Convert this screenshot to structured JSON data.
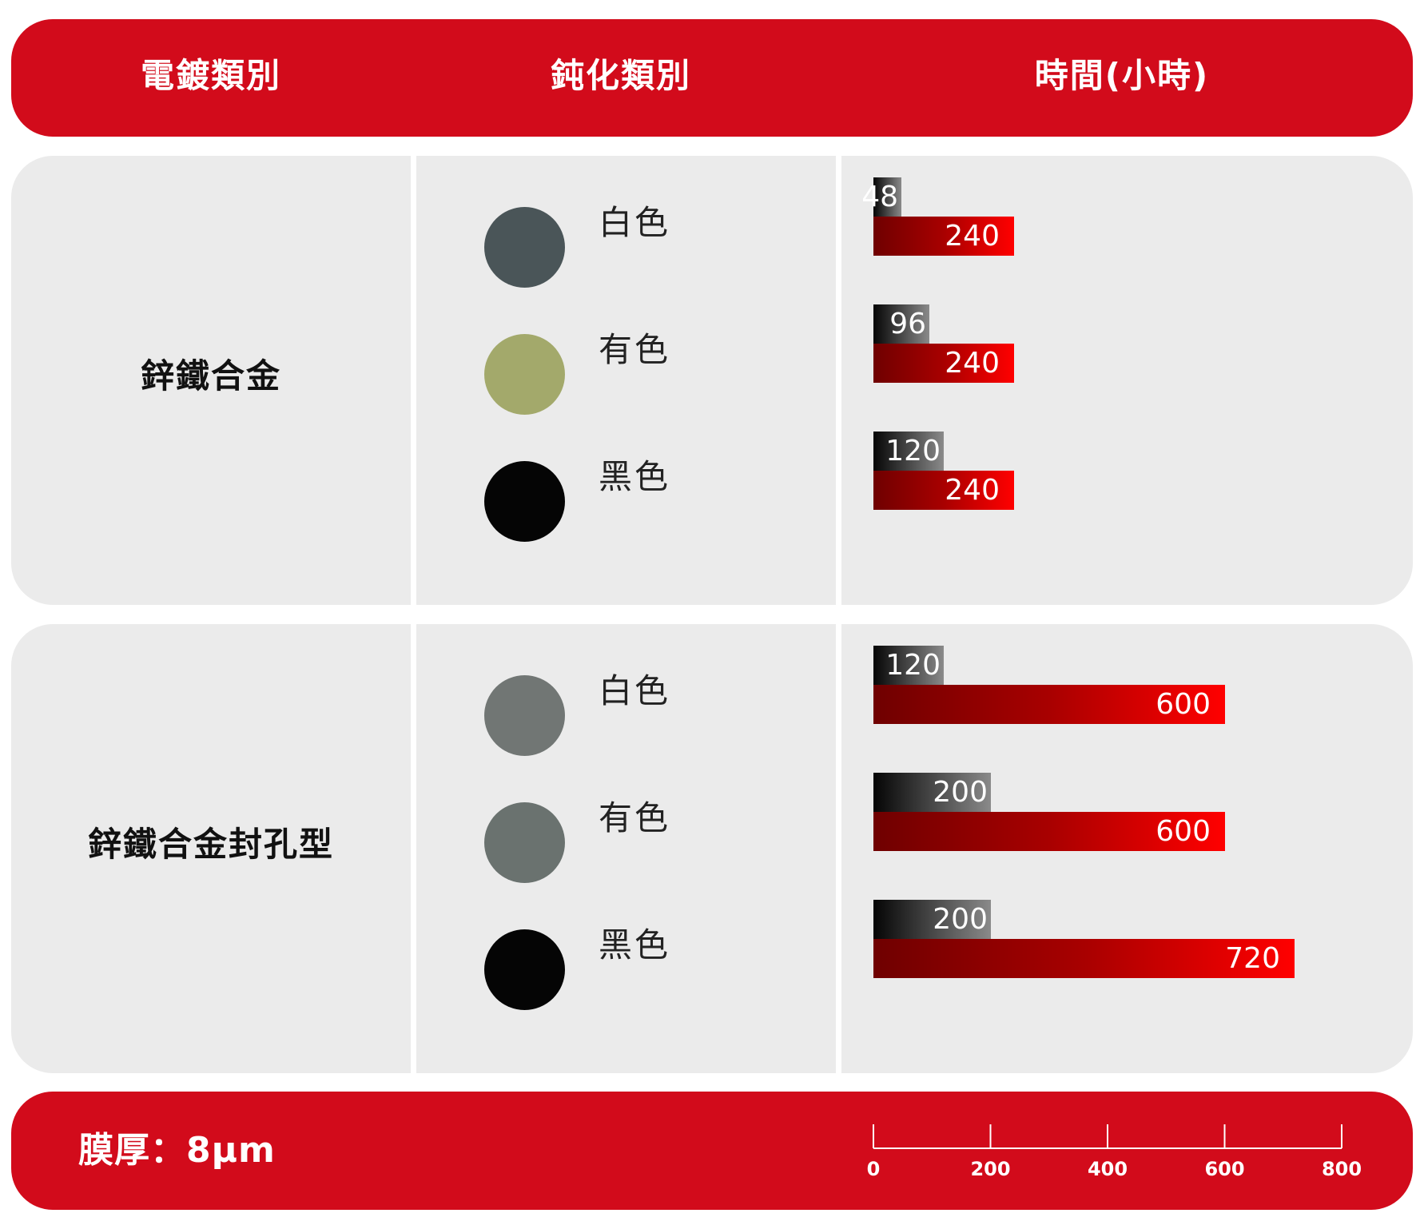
{
  "header": {
    "plating_label": "電鍍類別",
    "passivation_label": "鈍化類別",
    "time_label": "時間(小時)"
  },
  "colors": {
    "brand_red": "#d20b1b",
    "panel_gray": "#ebebeb",
    "bar_primary_gradient": [
      "#050505",
      "#8a8a8a"
    ],
    "bar_secondary_gradient": [
      "#6f0000",
      "#ff0000"
    ]
  },
  "chart_data": {
    "type": "bar",
    "orientation": "horizontal",
    "unit": "小時",
    "xlim": [
      0,
      800
    ],
    "x_ticks": [
      0,
      200,
      400,
      600,
      800
    ],
    "groups": [
      {
        "alloy": "鋅鐵合金",
        "rows": [
          {
            "passivation": "白色",
            "swatch_color": "#4a5558",
            "values": [
              48,
              240
            ]
          },
          {
            "passivation": "有色",
            "swatch_color": "#a3a96b",
            "values": [
              96,
              240
            ]
          },
          {
            "passivation": "黑色",
            "swatch_color": "#050505",
            "values": [
              120,
              240
            ]
          }
        ]
      },
      {
        "alloy": "鋅鐵合金封孔型",
        "rows": [
          {
            "passivation": "白色",
            "swatch_color": "#717674",
            "values": [
              120,
              600
            ]
          },
          {
            "passivation": "有色",
            "swatch_color": "#6a726f",
            "values": [
              200,
              600
            ]
          },
          {
            "passivation": "黑色",
            "swatch_color": "#050505",
            "values": [
              200,
              720
            ]
          }
        ]
      }
    ]
  },
  "footer": {
    "thickness": "膜厚：8µm"
  }
}
